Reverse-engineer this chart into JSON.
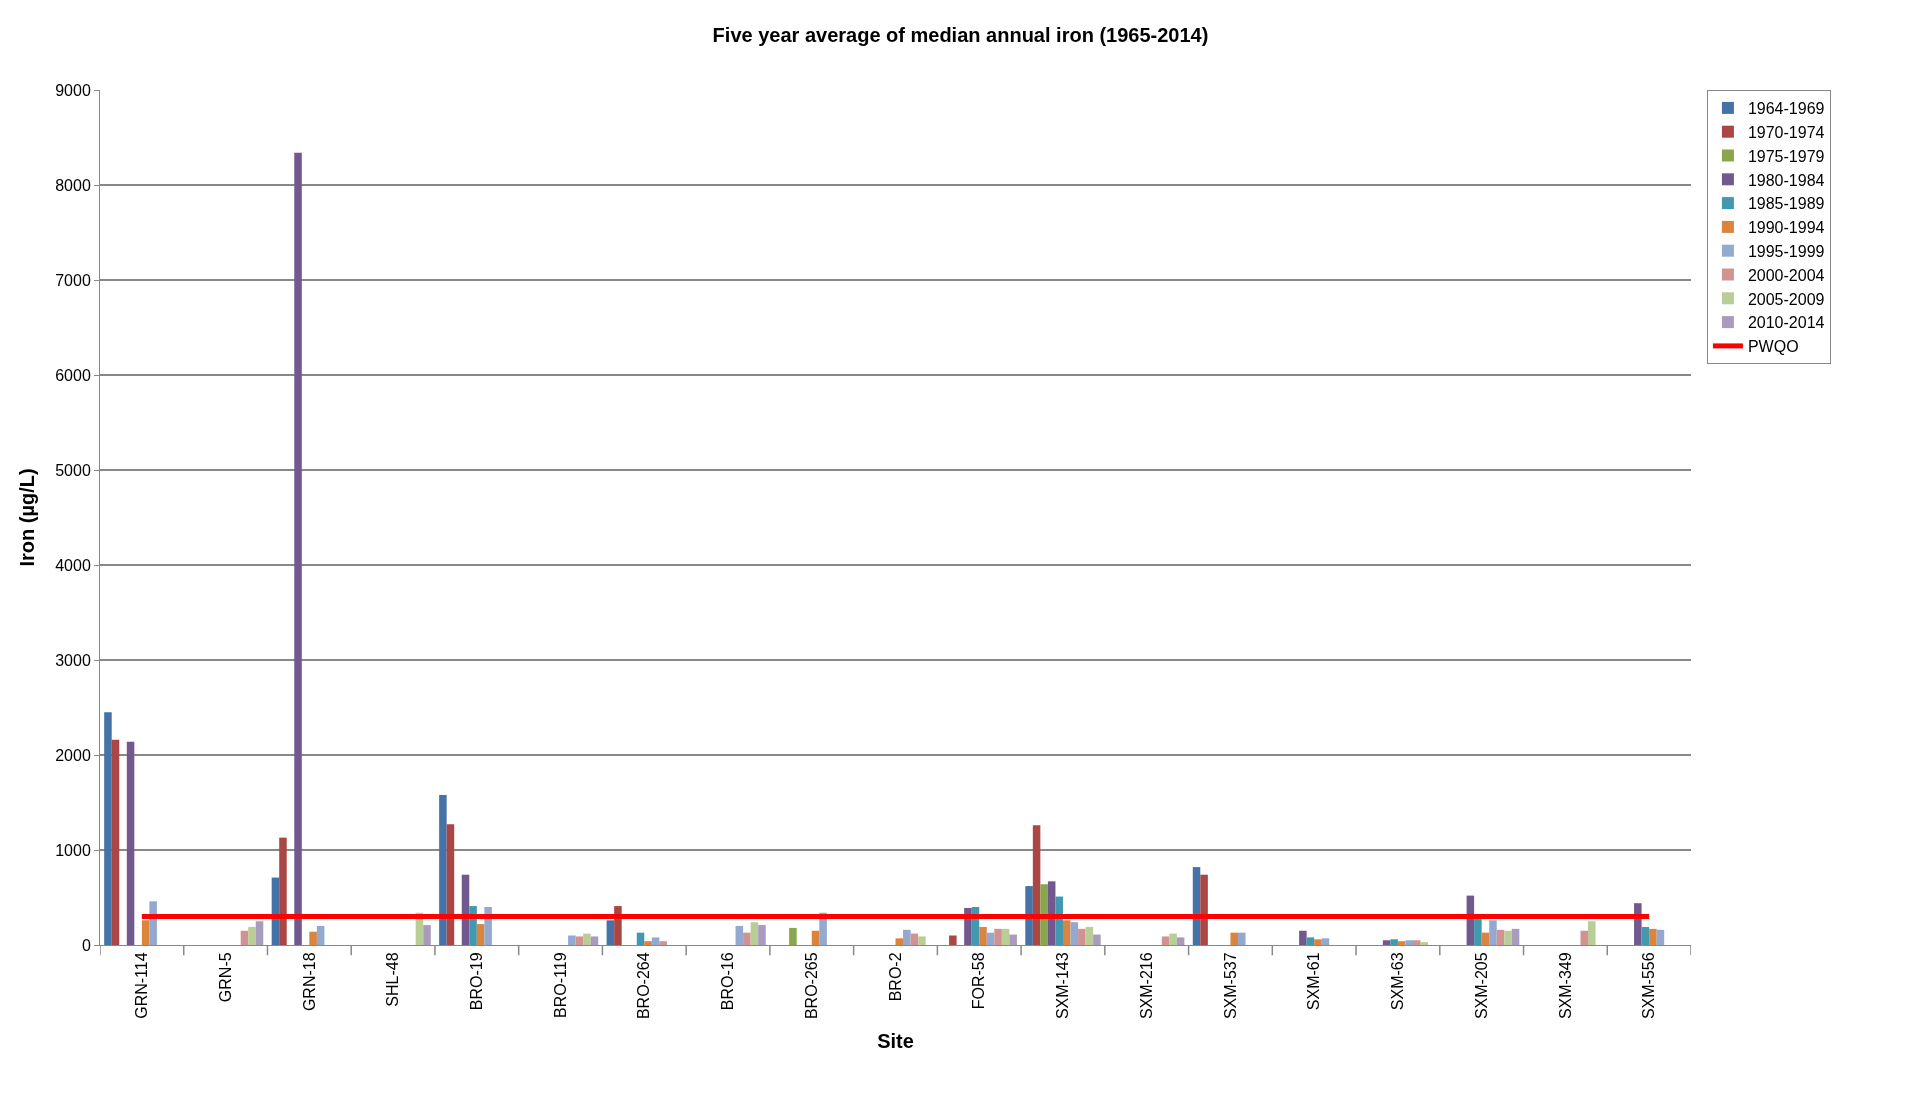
{
  "chart_data": {
    "type": "bar",
    "title": "Five year average of median annual iron (1965-2014)",
    "xlabel": "Site",
    "ylabel": "Iron (µg/L)",
    "categories": [
      "GRN-114",
      "GRN-5",
      "GRN-18",
      "SHL-48",
      "BRO-19",
      "BRO-119",
      "BRO-264",
      "BRO-16",
      "BRO-265",
      "BRO-2",
      "FOR-58",
      "SXM-143",
      "SXM-216",
      "SXM-537",
      "SXM-61",
      "SXM-63",
      "SXM-205",
      "SXM-349",
      "SXM-556"
    ],
    "series": [
      {
        "name": "1964-1969",
        "color": "#4572a7",
        "values": [
          2450,
          null,
          710,
          null,
          1580,
          null,
          260,
          null,
          null,
          null,
          null,
          620,
          null,
          820,
          null,
          null,
          null,
          null,
          null
        ]
      },
      {
        "name": "1970-1974",
        "color": "#aa4643",
        "values": [
          2160,
          null,
          1130,
          null,
          1270,
          null,
          410,
          null,
          null,
          null,
          100,
          1260,
          null,
          740,
          null,
          null,
          null,
          null,
          null
        ]
      },
      {
        "name": "1975-1979",
        "color": "#89a54e",
        "values": [
          null,
          null,
          null,
          null,
          null,
          null,
          null,
          null,
          180,
          null,
          null,
          640,
          null,
          null,
          null,
          null,
          null,
          null,
          null
        ]
      },
      {
        "name": "1980-1984",
        "color": "#71588f",
        "values": [
          2140,
          null,
          8340,
          null,
          740,
          null,
          null,
          null,
          null,
          null,
          390,
          670,
          null,
          null,
          150,
          50,
          520,
          null,
          440
        ]
      },
      {
        "name": "1985-1989",
        "color": "#4198af",
        "values": [
          null,
          null,
          null,
          null,
          410,
          null,
          130,
          null,
          null,
          null,
          400,
          510,
          null,
          null,
          80,
          60,
          290,
          null,
          190
        ]
      },
      {
        "name": "1990-1994",
        "color": "#db843d",
        "values": [
          260,
          null,
          140,
          null,
          220,
          null,
          40,
          null,
          150,
          70,
          190,
          260,
          null,
          130,
          60,
          40,
          130,
          null,
          170
        ]
      },
      {
        "name": "1995-1999",
        "color": "#93a9cf",
        "values": [
          460,
          null,
          200,
          null,
          400,
          100,
          80,
          200,
          340,
          160,
          130,
          240,
          null,
          130,
          70,
          50,
          260,
          null,
          160
        ]
      },
      {
        "name": "2000-2004",
        "color": "#d19392",
        "values": [
          null,
          150,
          null,
          null,
          null,
          90,
          40,
          130,
          null,
          120,
          170,
          170,
          90,
          null,
          null,
          50,
          160,
          150,
          null
        ]
      },
      {
        "name": "2005-2009",
        "color": "#b9cd96",
        "values": [
          null,
          190,
          null,
          340,
          null,
          120,
          null,
          240,
          null,
          90,
          170,
          190,
          120,
          null,
          null,
          30,
          150,
          250,
          null
        ]
      },
      {
        "name": "2010-2014",
        "color": "#a99bbd",
        "values": [
          null,
          250,
          null,
          210,
          null,
          90,
          null,
          210,
          null,
          null,
          110,
          110,
          80,
          null,
          null,
          null,
          170,
          null,
          null
        ]
      },
      {
        "name": "PWQO",
        "color": "#ff0000",
        "type": "line",
        "values": [
          300,
          300,
          300,
          300,
          300,
          300,
          300,
          300,
          300,
          300,
          300,
          300,
          300,
          300,
          300,
          300,
          300,
          300,
          300
        ]
      }
    ],
    "ylim": [
      0,
      9000
    ],
    "yticks": [
      0,
      1000,
      2000,
      3000,
      4000,
      5000,
      6000,
      7000,
      8000,
      9000
    ],
    "grid": "y",
    "legend": "top right"
  }
}
